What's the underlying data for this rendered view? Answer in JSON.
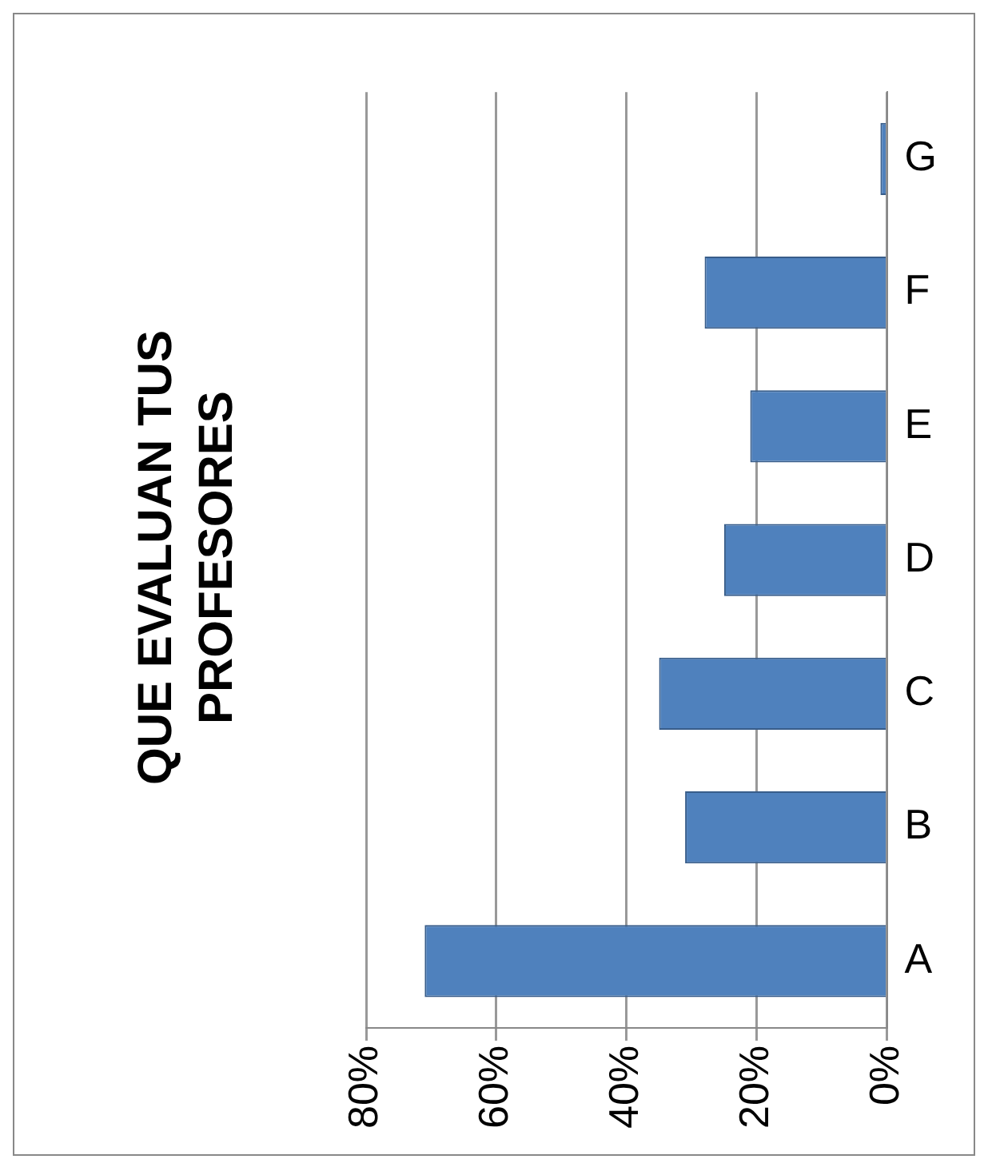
{
  "chart_data": {
    "type": "bar",
    "title": "QUE EVALUAN TUS PROFESORES",
    "orientation": "horizontal",
    "categories": [
      "G",
      "F",
      "E",
      "D",
      "C",
      "B",
      "A"
    ],
    "values": [
      1,
      28,
      21,
      25,
      35,
      31,
      71
    ],
    "color": "#4f81bd",
    "xlim": [
      80,
      0
    ],
    "xticks": [
      {
        "value": 80,
        "label": "80%"
      },
      {
        "value": 60,
        "label": "60%"
      },
      {
        "value": 40,
        "label": "40%"
      },
      {
        "value": 20,
        "label": "20%"
      },
      {
        "value": 0,
        "label": "0%"
      }
    ],
    "grid": "x",
    "legend": false
  }
}
